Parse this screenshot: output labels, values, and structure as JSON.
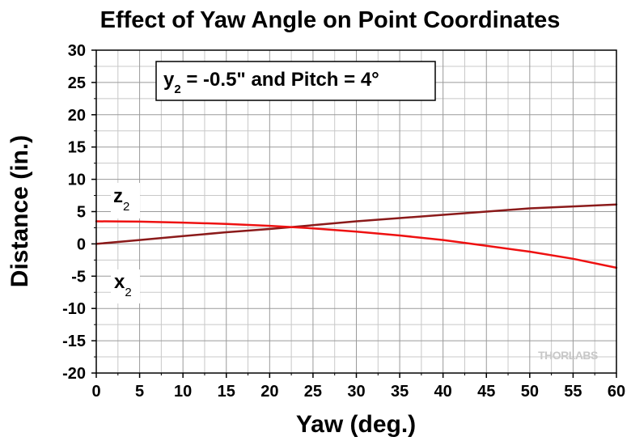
{
  "chart_data": {
    "type": "line",
    "title": "Effect of Yaw Angle on Point Coordinates",
    "xlabel": "Yaw (deg.)",
    "ylabel": "Distance (in.)",
    "xlim": [
      0,
      60
    ],
    "ylim": [
      -20,
      30
    ],
    "xticks": [
      0,
      5,
      10,
      15,
      20,
      25,
      30,
      35,
      40,
      45,
      50,
      55,
      60
    ],
    "yticks": [
      -20,
      -15,
      -10,
      -5,
      0,
      5,
      10,
      15,
      20,
      25,
      30
    ],
    "grid": true,
    "annotation": {
      "var": "y",
      "sub": "2",
      "text": " = -0.5\" and Pitch = 4°"
    },
    "series": [
      {
        "name": "z",
        "sub": "2",
        "color": "#8b1a1a",
        "x": [
          0,
          5,
          10,
          15,
          20,
          25,
          30,
          35,
          40,
          45,
          50,
          55,
          60
        ],
        "y": [
          0.0,
          0.6,
          1.2,
          1.8,
          2.3,
          2.9,
          3.5,
          4.0,
          4.5,
          5.0,
          5.5,
          5.8,
          6.1
        ]
      },
      {
        "name": "x",
        "sub": "2",
        "color": "#ee1111",
        "x": [
          0,
          5,
          10,
          15,
          20,
          25,
          30,
          35,
          40,
          45,
          50,
          55,
          60
        ],
        "y": [
          3.5,
          3.45,
          3.3,
          3.1,
          2.8,
          2.4,
          1.9,
          1.3,
          0.6,
          -0.3,
          -1.2,
          -2.3,
          -3.7
        ]
      }
    ]
  },
  "watermark": "THORLABS"
}
